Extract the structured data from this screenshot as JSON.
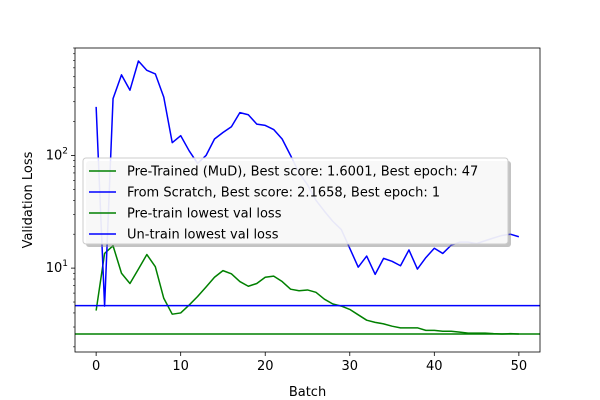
{
  "chart_data": {
    "type": "line",
    "title": "",
    "xlabel": "Batch",
    "ylabel": "Validation Loss",
    "xlim": [
      -2.5,
      52.5
    ],
    "ylim": [
      1.8,
      900
    ],
    "yscale": "log",
    "x_ticks": [
      0,
      10,
      20,
      30,
      40,
      50
    ],
    "x_tick_labels": [
      "0",
      "10",
      "20",
      "30",
      "40",
      "50"
    ],
    "y_major_ticks": [
      10,
      100
    ],
    "y_tick_labels": [
      "10^1",
      "10^2"
    ],
    "grid": false,
    "legend_position": "center",
    "series": [
      {
        "name": "Pre-Trained (MuD), Best score: 1.6001, Best epoch: 47",
        "color": "#008000",
        "x": [
          0,
          1,
          2,
          3,
          4,
          5,
          6,
          7,
          8,
          9,
          10,
          11,
          12,
          13,
          14,
          15,
          16,
          17,
          18,
          19,
          20,
          21,
          22,
          23,
          24,
          25,
          26,
          27,
          28,
          29,
          30,
          31,
          32,
          33,
          34,
          35,
          36,
          37,
          38,
          39,
          40,
          41,
          42,
          43,
          44,
          45,
          46,
          47,
          48,
          49,
          50
        ],
        "y": [
          4.2,
          13.5,
          15.8,
          9.0,
          7.3,
          9.8,
          13.2,
          10.3,
          5.4,
          3.9,
          4.0,
          4.7,
          5.6,
          6.8,
          8.3,
          9.5,
          8.9,
          7.6,
          6.9,
          7.3,
          8.3,
          8.5,
          7.6,
          6.5,
          6.3,
          6.4,
          6.1,
          5.3,
          4.8,
          4.6,
          4.3,
          3.85,
          3.45,
          3.3,
          3.2,
          3.05,
          2.95,
          2.95,
          2.95,
          2.8,
          2.8,
          2.75,
          2.75,
          2.7,
          2.65,
          2.65,
          2.65,
          2.62,
          2.6,
          2.62,
          2.6
        ]
      },
      {
        "name": "From Scratch, Best score: 2.1658, Best epoch: 1",
        "color": "#0000ff",
        "x": [
          0,
          1,
          2,
          3,
          4,
          5,
          6,
          7,
          8,
          9,
          10,
          11,
          12,
          13,
          14,
          15,
          16,
          17,
          18,
          19,
          20,
          21,
          22,
          23,
          24,
          25,
          26,
          27,
          28,
          29,
          30,
          31,
          32,
          33,
          34,
          35,
          36,
          37,
          38,
          39,
          40,
          41,
          42,
          43,
          44,
          45,
          46,
          47,
          48,
          49,
          50
        ],
        "y": [
          270,
          4.6,
          320,
          520,
          380,
          690,
          570,
          530,
          330,
          130,
          150,
          110,
          85,
          100,
          140,
          160,
          180,
          240,
          230,
          190,
          185,
          170,
          140,
          100,
          70,
          55,
          40,
          32,
          26,
          22,
          15,
          10.2,
          12.8,
          8.8,
          12.2,
          11.5,
          10.5,
          14.5,
          9.8,
          12.4,
          15.0,
          13.5,
          16.0,
          17.0,
          17.0,
          16.5,
          17.5,
          18.5,
          19.5,
          20.0,
          19.0
        ]
      },
      {
        "name": "Pre-train lowest val loss",
        "color": "#008000",
        "hline": 2.6
      },
      {
        "name": "Un-train lowest val loss",
        "color": "#0000ff",
        "hline": 4.65
      }
    ]
  }
}
